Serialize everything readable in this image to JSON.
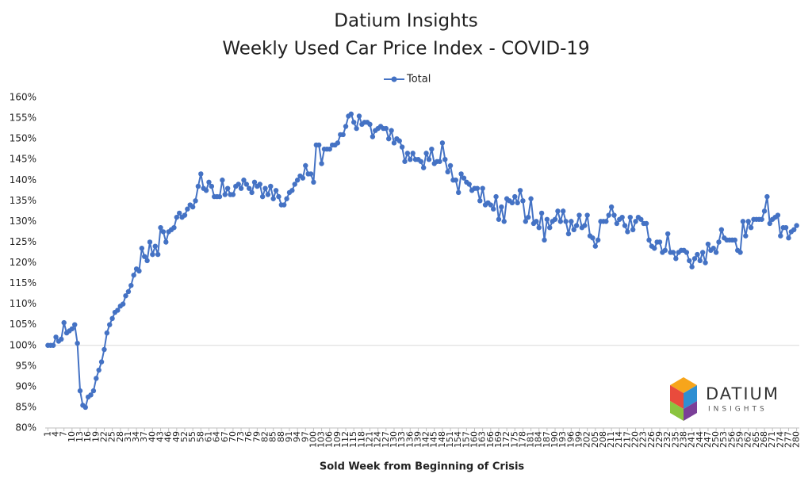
{
  "chart_data": {
    "type": "line",
    "title": "Datium Insights",
    "subtitle": "Weekly Used Car Price Index - COVID-19",
    "x_label": "Sold Week from Beginning of Crisis",
    "legend": "top",
    "hline": 100,
    "logo": {
      "name": "DATIUM",
      "tagline": "INSIGHTS"
    },
    "xlim": [
      0,
      281
    ],
    "ylim": [
      80,
      160
    ],
    "yticks": [
      {
        "value": 80,
        "label": "80%"
      },
      {
        "value": 85,
        "label": "85%"
      },
      {
        "value": 90,
        "label": "90%"
      },
      {
        "value": 95,
        "label": "95%"
      },
      {
        "value": 100,
        "label": "100%"
      },
      {
        "value": 105,
        "label": "105%"
      },
      {
        "value": 110,
        "label": "110%"
      },
      {
        "value": 115,
        "label": "115%"
      },
      {
        "value": 120,
        "label": "120%"
      },
      {
        "value": 125,
        "label": "125%"
      },
      {
        "value": 130,
        "label": "130%"
      },
      {
        "value": 135,
        "label": "135%"
      },
      {
        "value": 140,
        "label": "140%"
      },
      {
        "value": 145,
        "label": "145%"
      },
      {
        "value": 150,
        "label": "150%"
      },
      {
        "value": 155,
        "label": "155%"
      },
      {
        "value": 160,
        "label": "160%"
      }
    ],
    "xticks": [
      1,
      4,
      7,
      10,
      13,
      16,
      19,
      22,
      25,
      28,
      31,
      34,
      37,
      40,
      43,
      46,
      49,
      52,
      55,
      58,
      61,
      64,
      67,
      70,
      73,
      76,
      79,
      82,
      85,
      88,
      91,
      94,
      97,
      100,
      103,
      106,
      109,
      112,
      115,
      118,
      121,
      124,
      127,
      130,
      133,
      136,
      139,
      142,
      145,
      148,
      151,
      154,
      157,
      160,
      163,
      166,
      169,
      172,
      175,
      178,
      181,
      184,
      187,
      190,
      193,
      196,
      199,
      202,
      205,
      208,
      211,
      214,
      217,
      220,
      223,
      226,
      229,
      232,
      235,
      238,
      241,
      244,
      247,
      250,
      253,
      256,
      259,
      262,
      265,
      268,
      271,
      274,
      277,
      280
    ],
    "x": [
      1,
      2,
      3,
      4,
      5,
      6,
      7,
      8,
      9,
      10,
      11,
      12,
      13,
      14,
      15,
      16,
      17,
      18,
      19,
      20,
      21,
      22,
      23,
      24,
      25,
      26,
      27,
      28,
      29,
      30,
      31,
      32,
      33,
      34,
      35,
      36,
      37,
      38,
      39,
      40,
      41,
      42,
      43,
      44,
      45,
      46,
      47,
      48,
      49,
      50,
      51,
      52,
      53,
      54,
      55,
      56,
      57,
      58,
      59,
      60,
      61,
      62,
      63,
      64,
      65,
      66,
      67,
      68,
      69,
      70,
      71,
      72,
      73,
      74,
      75,
      76,
      77,
      78,
      79,
      80,
      81,
      82,
      83,
      84,
      85,
      86,
      87,
      88,
      89,
      90,
      91,
      92,
      93,
      94,
      95,
      96,
      97,
      98,
      99,
      100,
      101,
      102,
      103,
      104,
      105,
      106,
      107,
      108,
      109,
      110,
      111,
      112,
      113,
      114,
      115,
      116,
      117,
      118,
      119,
      120,
      121,
      122,
      123,
      124,
      125,
      126,
      127,
      128,
      129,
      130,
      131,
      132,
      133,
      134,
      135,
      136,
      137,
      138,
      139,
      140,
      141,
      142,
      143,
      144,
      145,
      146,
      147,
      148,
      149,
      150,
      151,
      152,
      153,
      154,
      155,
      156,
      157,
      158,
      159,
      160,
      161,
      162,
      163,
      164,
      165,
      166,
      167,
      168,
      169,
      170,
      171,
      172,
      173,
      174,
      175,
      176,
      177,
      178,
      179,
      180,
      181,
      182,
      183,
      184,
      185,
      186,
      187,
      188,
      189,
      190,
      191,
      192,
      193,
      194,
      195,
      196,
      197,
      198,
      199,
      200,
      201,
      202,
      203,
      204,
      205,
      206,
      207,
      208,
      209,
      210,
      211,
      212,
      213,
      214,
      215,
      216,
      217,
      218,
      219,
      220,
      221,
      222,
      223,
      224,
      225,
      226,
      227,
      228,
      229,
      230,
      231,
      232,
      233,
      234,
      235,
      236,
      237,
      238,
      239,
      240,
      241,
      242,
      243,
      244,
      245,
      246,
      247,
      248,
      249,
      250,
      251,
      252,
      253,
      254,
      255,
      256,
      257,
      258,
      259,
      260,
      261,
      262,
      263,
      264,
      265,
      266,
      267,
      268,
      269,
      270,
      271,
      272,
      273,
      274,
      275,
      276,
      277,
      278,
      279,
      280
    ],
    "series": [
      {
        "name": "Total",
        "color": "#4472c4",
        "values": [
          100,
          100,
          100,
          102,
          101,
          101.5,
          105.5,
          103,
          103.5,
          104,
          105,
          100.5,
          89,
          85.5,
          85,
          87.5,
          88,
          89,
          92,
          94,
          96,
          99,
          103,
          105,
          106.5,
          108,
          108.5,
          109.5,
          110,
          112,
          113,
          114.5,
          117,
          118.5,
          118,
          123.5,
          121.5,
          120.5,
          125,
          122,
          124,
          122,
          128.5,
          127.5,
          125,
          127.5,
          128,
          128.5,
          131,
          132,
          131,
          131.5,
          133,
          134,
          133.5,
          135,
          138.5,
          141.5,
          138,
          137.5,
          139.5,
          138.5,
          136,
          136,
          136,
          140,
          136.5,
          138,
          136.5,
          136.5,
          138.5,
          139,
          138,
          140,
          139,
          138,
          137,
          139.5,
          138.5,
          139,
          136,
          138,
          136.5,
          138.5,
          135.5,
          137.5,
          136,
          134,
          134,
          135.5,
          137,
          137.5,
          139,
          140,
          141,
          140.5,
          143.5,
          141.5,
          141.5,
          139.5,
          148.5,
          148.5,
          144,
          147.5,
          147.5,
          147.5,
          148.5,
          148.5,
          149,
          151,
          151,
          153,
          155.5,
          156,
          154,
          152.5,
          155.5,
          153.5,
          154,
          154,
          153.5,
          150.5,
          152,
          152.5,
          153,
          152.5,
          152.5,
          150,
          152,
          149,
          150,
          149.5,
          148,
          144.5,
          146.5,
          145,
          146.5,
          145,
          145,
          144.5,
          143,
          146.5,
          145,
          147.5,
          144,
          144.5,
          144.5,
          149,
          145,
          142,
          143.5,
          140,
          140,
          137,
          141.5,
          140.5,
          139.5,
          139,
          137.5,
          138,
          138,
          135,
          138,
          134,
          134.5,
          134,
          133,
          136,
          130.5,
          133.5,
          130,
          135.5,
          135,
          134.5,
          136,
          134.5,
          137.5,
          135,
          130,
          131,
          135.5,
          129.5,
          130,
          128.5,
          132,
          125.5,
          130.5,
          128.5,
          130,
          130.5,
          132.5,
          130,
          132.5,
          130,
          127,
          130,
          128,
          129,
          131.5,
          128.5,
          129,
          131.5,
          126.5,
          126,
          124,
          125.5,
          130,
          130,
          130,
          131.5,
          133.5,
          131.5,
          129.5,
          130.5,
          131,
          129,
          127.5,
          131,
          128,
          130,
          131,
          130.5,
          129.5,
          129.5,
          125.5,
          124,
          123.5,
          125,
          125,
          122.5,
          123,
          127,
          122.5,
          122.5,
          121,
          122.5,
          123,
          123,
          122.5,
          120.5,
          119,
          121,
          122,
          120.5,
          122.5,
          120,
          124.5,
          123,
          123.5,
          122.5,
          125,
          128,
          126,
          125.5,
          125.5,
          125.5,
          125.5,
          123,
          122.5,
          130,
          126.5,
          130,
          128.5,
          130.5,
          130.5,
          130.5,
          130.5,
          132.5,
          136,
          129.5,
          130.5,
          131,
          131.5,
          126.5,
          128.5,
          128.5,
          126,
          127.5,
          128,
          129
        ]
      }
    ]
  }
}
